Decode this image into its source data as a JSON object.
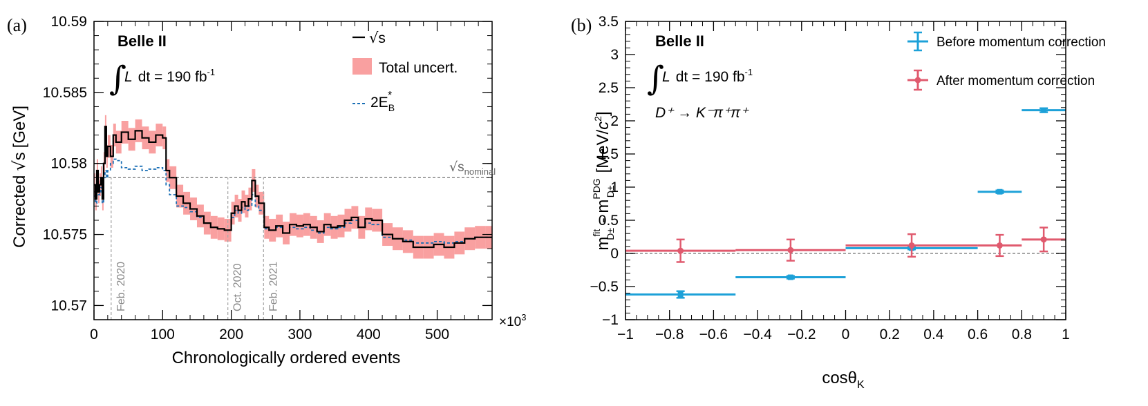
{
  "chart_data": [
    {
      "panel_label": "(a)",
      "type": "line",
      "experiment": "Belle II",
      "lumi_prefix": "L",
      "lumi_text": "dt = 190 fb",
      "lumi_exp": "-1",
      "xlabel": "Chronologically ordered events",
      "ylabel_prefix": "Corrected",
      "ylabel_sym": "s",
      "ylabel_unit": "[GeV]",
      "x_multiplier": "×10",
      "x_multiplier_exp": "3",
      "xlim": [
        0,
        580
      ],
      "ylim": [
        10.569,
        10.59
      ],
      "x_ticks": [
        0,
        100,
        200,
        300,
        400,
        500
      ],
      "y_ticks": [
        10.57,
        10.575,
        10.58,
        10.585,
        10.59
      ],
      "y_tick_labels": [
        "10.57",
        "10.575",
        "10.58",
        "10.585",
        "10.59"
      ],
      "legend": {
        "sqrt_s": "s",
        "band": "Total uncert.",
        "beam_text": "2E",
        "beam_sub": "B",
        "beam_sup": "*"
      },
      "nominal": {
        "y": 10.579,
        "label": "s",
        "sub": "nominal"
      },
      "vertical_markers": [
        {
          "x": 25,
          "label": "Feb. 2020"
        },
        {
          "x": 195,
          "label": "Oct. 2020"
        },
        {
          "x": 247,
          "label": "Feb. 2021"
        }
      ],
      "series": [
        {
          "name": "sqrt(s)",
          "color": "#000000",
          "x": [
            0,
            2,
            4,
            6,
            8,
            10,
            12,
            14,
            16,
            18,
            20,
            24,
            28,
            32,
            40,
            50,
            60,
            70,
            80,
            90,
            100,
            105,
            110,
            120,
            130,
            140,
            150,
            160,
            170,
            180,
            190,
            200,
            205,
            210,
            215,
            220,
            225,
            230,
            235,
            240,
            248,
            255,
            265,
            275,
            285,
            295,
            305,
            315,
            325,
            335,
            345,
            355,
            365,
            375,
            385,
            395,
            405,
            420,
            435,
            450,
            465,
            480,
            495,
            510,
            525,
            540,
            555,
            570,
            580
          ],
          "y": [
            10.5785,
            10.5775,
            10.5795,
            10.578,
            10.5785,
            10.579,
            10.5775,
            10.58,
            10.5826,
            10.5805,
            10.5812,
            10.5805,
            10.582,
            10.5815,
            10.5822,
            10.5817,
            10.5823,
            10.5818,
            10.5815,
            10.582,
            10.5818,
            10.5795,
            10.579,
            10.5777,
            10.5772,
            10.5768,
            10.5763,
            10.5758,
            10.5755,
            10.5754,
            10.5753,
            10.5765,
            10.577,
            10.5767,
            10.5773,
            10.577,
            10.5775,
            10.5788,
            10.5777,
            10.5772,
            10.5755,
            10.5753,
            10.5756,
            10.5751,
            10.5757,
            10.5756,
            10.5757,
            10.5755,
            10.5752,
            10.5757,
            10.5755,
            10.5756,
            10.576,
            10.5762,
            10.5755,
            10.5761,
            10.576,
            10.575,
            10.5747,
            10.5745,
            10.5741,
            10.5741,
            10.5743,
            10.5741,
            10.5744,
            10.5747,
            10.5748,
            10.5748,
            10.5748
          ]
        },
        {
          "name": "2E_B*",
          "color": "#1a6fb5",
          "x": [
            0,
            2,
            4,
            6,
            8,
            10,
            12,
            14,
            16,
            18,
            20,
            24,
            28,
            32,
            40,
            50,
            60,
            70,
            80,
            90,
            100,
            105,
            110,
            120,
            130,
            140,
            150,
            160,
            170,
            180,
            190,
            200,
            205,
            210,
            215,
            220,
            225,
            230,
            235,
            240,
            248,
            255,
            265,
            275,
            285,
            295,
            305,
            315,
            325,
            335,
            345,
            355,
            365,
            375,
            385,
            395,
            405,
            420,
            435,
            450,
            465,
            480,
            495,
            510,
            525,
            540,
            555,
            570,
            580
          ],
          "y": [
            10.5777,
            10.5772,
            10.5783,
            10.5778,
            10.578,
            10.5783,
            10.5772,
            10.579,
            10.5795,
            10.579,
            10.5795,
            10.58,
            10.5803,
            10.5802,
            10.5797,
            10.5796,
            10.5798,
            10.5795,
            10.5796,
            10.5797,
            10.5795,
            10.5785,
            10.5778,
            10.577,
            10.5769,
            10.5766,
            10.5762,
            10.5758,
            10.5755,
            10.5754,
            10.5753,
            10.5762,
            10.5767,
            10.5765,
            10.5769,
            10.5767,
            10.577,
            10.5778,
            10.577,
            10.5767,
            10.5754,
            10.5753,
            10.5755,
            10.5751,
            10.5755,
            10.5754,
            10.5755,
            10.5753,
            10.5751,
            10.5755,
            10.5754,
            10.5755,
            10.5758,
            10.576,
            10.5755,
            10.5758,
            10.5757,
            10.5748,
            10.5747,
            10.5746,
            10.5744,
            10.5744,
            10.5745,
            10.5744,
            10.5745,
            10.5747,
            10.5748,
            10.5748,
            10.5748
          ]
        }
      ],
      "band_halfwidth": 0.0008
    },
    {
      "panel_label": "(b)",
      "type": "scatter",
      "experiment": "Belle II",
      "lumi_prefix": "L",
      "lumi_text": "dt = 190 fb",
      "lumi_exp": "-1",
      "decay": "D⁺ → K⁻π⁺π⁺",
      "xlabel_main": "cosθ",
      "xlabel_sub": "K",
      "ylabel": "m(fit, D±) − m(PDG, D±)  [MeV/c²]",
      "ylabel_parts": {
        "m1": "m",
        "sup1": "fit",
        "sub1": "D±",
        "minus": " - ",
        "m2": "m",
        "sup2": "PDG",
        "sub2": "D±",
        "unit": "[MeV/",
        "c": "c",
        "unit_end": "]"
      },
      "xlim": [
        -1,
        1
      ],
      "ylim": [
        -1,
        3.5
      ],
      "x_ticks": [
        -1,
        -0.8,
        -0.6,
        -0.4,
        -0.2,
        0,
        0.2,
        0.4,
        0.6,
        0.8,
        1
      ],
      "x_tick_labels": [
        "−1",
        "−0.8",
        "−0.6",
        "−0.4",
        "−0.2",
        "0",
        "0.2",
        "0.4",
        "0.6",
        "0.8",
        "1"
      ],
      "y_ticks": [
        -1,
        -0.5,
        0,
        0.5,
        1,
        1.5,
        2,
        2.5,
        3,
        3.5
      ],
      "y_tick_labels": [
        "−1",
        "−0.5",
        "0",
        "0.5",
        "1",
        "1.5",
        "2",
        "2.5",
        "3",
        "3.5"
      ],
      "series": [
        {
          "name": "Before momentum correction",
          "color": "#1da1d8",
          "points": [
            {
              "x": -0.75,
              "xlo": -1.0,
              "xhi": -0.5,
              "y": -0.62,
              "err": 0.05
            },
            {
              "x": -0.25,
              "xlo": -0.5,
              "xhi": 0.0,
              "y": -0.36,
              "err": 0.02
            },
            {
              "x": 0.3,
              "xlo": 0.0,
              "xhi": 0.6,
              "y": 0.08,
              "err": 0.02
            },
            {
              "x": 0.7,
              "xlo": 0.6,
              "xhi": 0.8,
              "y": 0.93,
              "err": 0.02
            },
            {
              "x": 0.9,
              "xlo": 0.8,
              "xhi": 1.0,
              "y": 2.16,
              "err": 0.03
            }
          ]
        },
        {
          "name": "After momentum correction",
          "color": "#e05a6e",
          "points": [
            {
              "x": -0.75,
              "xlo": -1.0,
              "xhi": -0.5,
              "y": 0.04,
              "err": 0.17
            },
            {
              "x": -0.25,
              "xlo": -0.5,
              "xhi": 0.0,
              "y": 0.05,
              "err": 0.16
            },
            {
              "x": 0.3,
              "xlo": 0.0,
              "xhi": 0.6,
              "y": 0.12,
              "err": 0.17
            },
            {
              "x": 0.7,
              "xlo": 0.6,
              "xhi": 0.8,
              "y": 0.12,
              "err": 0.16
            },
            {
              "x": 0.9,
              "xlo": 0.8,
              "xhi": 1.0,
              "y": 0.21,
              "err": 0.18
            }
          ]
        }
      ]
    }
  ]
}
